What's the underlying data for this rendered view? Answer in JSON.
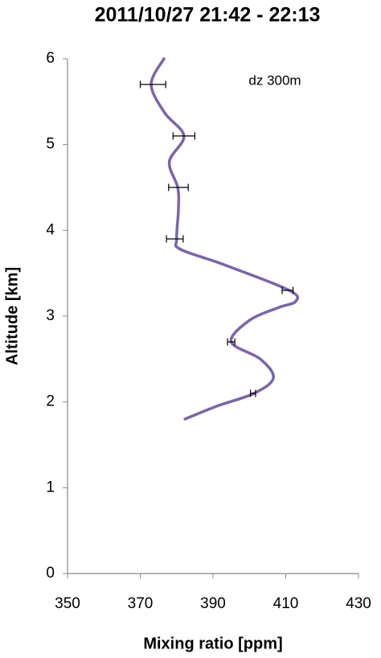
{
  "chart_data": {
    "type": "line",
    "title": "2011/10/27  21:42 - 22:13",
    "x_label": "Mixing ratio [ppm]",
    "y_label": "Altitude [km]",
    "annotation": "dz 300m",
    "xlim": [
      350,
      430
    ],
    "xticks": [
      350,
      370,
      390,
      410,
      430
    ],
    "ylim": [
      0,
      6
    ],
    "yticks": [
      0,
      1,
      2,
      3,
      4,
      5,
      6
    ],
    "grid": false,
    "profile": {
      "color": "#7b64ab",
      "x": [
        382.3,
        391,
        401.3,
        406.6,
        403,
        395,
        400,
        408,
        412.7,
        411,
        393,
        381,
        380,
        380.5,
        380.3,
        378,
        382,
        376.7,
        373,
        376.5
      ],
      "y": [
        1.8,
        1.95,
        2.1,
        2.28,
        2.5,
        2.7,
        2.95,
        3.1,
        3.17,
        3.3,
        3.6,
        3.78,
        3.9,
        4.25,
        4.5,
        4.8,
        5.1,
        5.37,
        5.7,
        6.0
      ]
    },
    "points": {
      "color": "#000000",
      "x": [
        401,
        395,
        410.5,
        379.5,
        380.5,
        382,
        373.5
      ],
      "y": [
        2.1,
        2.7,
        3.3,
        3.9,
        4.5,
        5.1,
        5.7
      ],
      "xerr": [
        0.7,
        1,
        1.5,
        2.3,
        2.7,
        3,
        3.5
      ]
    }
  }
}
